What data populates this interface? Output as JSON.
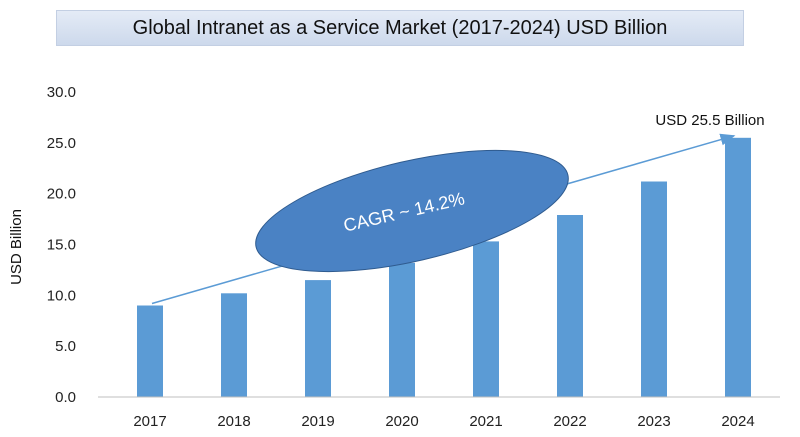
{
  "title": "Global Intranet as a Service Market  (2017-2024) USD Billion",
  "chart_data": {
    "type": "bar",
    "categories": [
      "2017",
      "2018",
      "2019",
      "2020",
      "2021",
      "2022",
      "2023",
      "2024"
    ],
    "values": [
      9.0,
      10.2,
      11.5,
      13.2,
      15.3,
      17.9,
      21.2,
      25.5
    ],
    "xlabel": "",
    "ylabel": "USD Billion",
    "ylim": [
      0,
      30
    ],
    "yticks": [
      "0.0",
      "5.0",
      "10.0",
      "15.0",
      "20.0",
      "25.0",
      "30.0"
    ],
    "grid": false,
    "legend": "none",
    "bar_color": "#5b9bd5",
    "annotations": {
      "end_value_label": "USD 25.5 Billion",
      "cagr_label": "CAGR ~ 14.2%",
      "cagr_color": "#4a82c4"
    }
  }
}
